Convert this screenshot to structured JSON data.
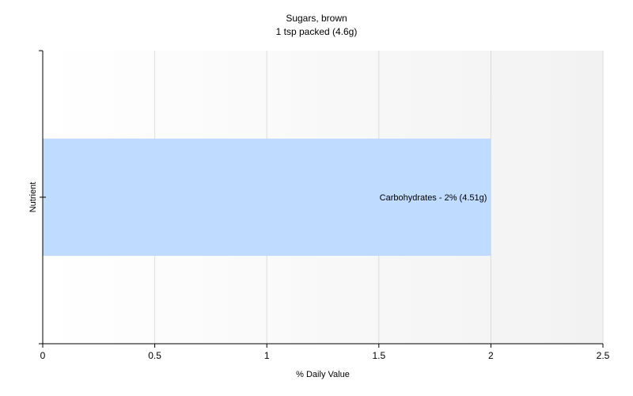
{
  "chart_data": {
    "type": "bar",
    "orientation": "horizontal",
    "title": "Sugars, brown",
    "subtitle": "1 tsp packed (4.6g)",
    "xlabel": "% Daily Value",
    "ylabel": "Nutrient",
    "xlim": [
      0,
      2.5
    ],
    "x_ticks": [
      "0",
      "0.5",
      "1",
      "1.5",
      "2",
      "2.5"
    ],
    "grid": true,
    "categories": [
      "Carbohydrates"
    ],
    "values": [
      2
    ],
    "data_labels": [
      "Carbohydrates - 2% (4.51g)"
    ],
    "bar_color": "#bfdbff",
    "plot_background": "#f5f5f5"
  }
}
